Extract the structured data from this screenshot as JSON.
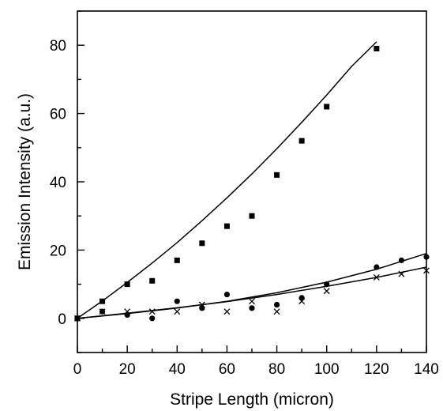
{
  "chart_data": {
    "type": "scatter",
    "title": "",
    "xlabel": "Stripe Length (micron)",
    "ylabel": "Emission Intensity (a.u.)",
    "xlim": [
      0,
      140
    ],
    "ylim": [
      -10,
      90
    ],
    "xticks": [
      0,
      20,
      40,
      60,
      80,
      100,
      120,
      140
    ],
    "yticks": [
      0,
      20,
      40,
      60,
      80
    ],
    "xtick_labels": [
      "0",
      "20",
      "40",
      "60",
      "80",
      "100",
      "120",
      "140"
    ],
    "ytick_labels": [
      "0",
      "20",
      "40",
      "60",
      "80"
    ],
    "grid": false,
    "legend": "none",
    "series": [
      {
        "marker": "square",
        "color": "#000000",
        "x": [
          0,
          10,
          20,
          30,
          40,
          50,
          60,
          70,
          80,
          90,
          100,
          120
        ],
        "y": [
          0,
          5,
          10,
          11,
          17,
          22,
          27,
          30,
          42,
          52,
          62,
          79
        ]
      },
      {
        "marker": "circle",
        "color": "#000000",
        "x": [
          0,
          10,
          20,
          30,
          40,
          50,
          60,
          70,
          80,
          90,
          100,
          120,
          130,
          140
        ],
        "y": [
          0,
          2,
          1,
          0,
          5,
          3,
          7,
          3,
          4,
          6,
          10,
          15,
          17,
          18
        ]
      },
      {
        "marker": "cross",
        "color": "#000000",
        "x": [
          0,
          10,
          20,
          30,
          40,
          50,
          60,
          70,
          80,
          90,
          100,
          120,
          130,
          140
        ],
        "y": [
          0,
          2,
          2,
          2,
          2,
          4,
          2,
          5,
          2,
          5,
          8,
          12,
          13,
          14
        ]
      }
    ],
    "fit_curves": [
      {
        "x": [
          0,
          10,
          20,
          30,
          40,
          50,
          60,
          70,
          80,
          90,
          100,
          110,
          120
        ],
        "y": [
          0,
          5.1,
          10.5,
          16.2,
          22.2,
          28.6,
          35.3,
          42.3,
          49.7,
          57.4,
          65.4,
          73.8,
          81
        ]
      },
      {
        "x": [
          0,
          20,
          40,
          60,
          80,
          100,
          120,
          140
        ],
        "y": [
          0,
          1.4,
          3.0,
          5.0,
          7.5,
          10.6,
          14.4,
          19
        ]
      },
      {
        "x": [
          0,
          20,
          40,
          60,
          80,
          100,
          120,
          140
        ],
        "y": [
          0,
          1.5,
          3.1,
          4.9,
          7.0,
          9.4,
          12.0,
          15
        ]
      }
    ]
  }
}
